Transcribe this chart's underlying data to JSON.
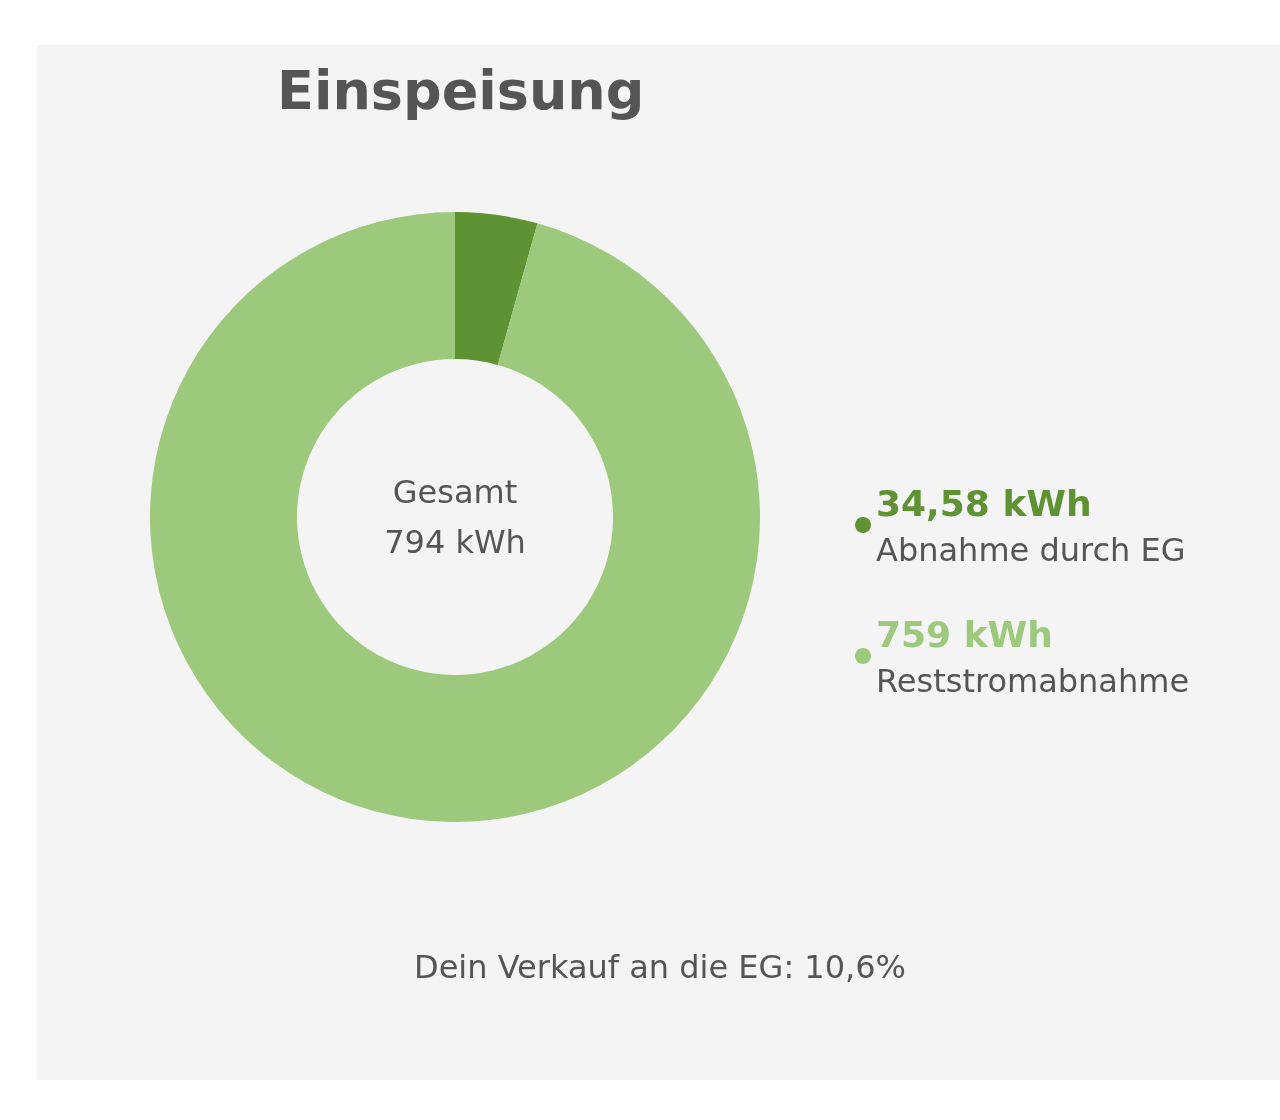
{
  "chart_data": {
    "type": "donut",
    "title": "Einspeisung",
    "categories": [
      "Abnahme durch EG",
      "Reststromabnahme"
    ],
    "values": [
      34.58,
      759
    ],
    "value_labels": [
      "34,58 kWh",
      "759 kWh"
    ],
    "colors": [
      "#5e9232",
      "#9cc97b"
    ],
    "legend": "right",
    "annotations": [
      "Gesamt\n794 kWh",
      "Dein Verkauf an die EG: 10,6%"
    ]
  }
}
